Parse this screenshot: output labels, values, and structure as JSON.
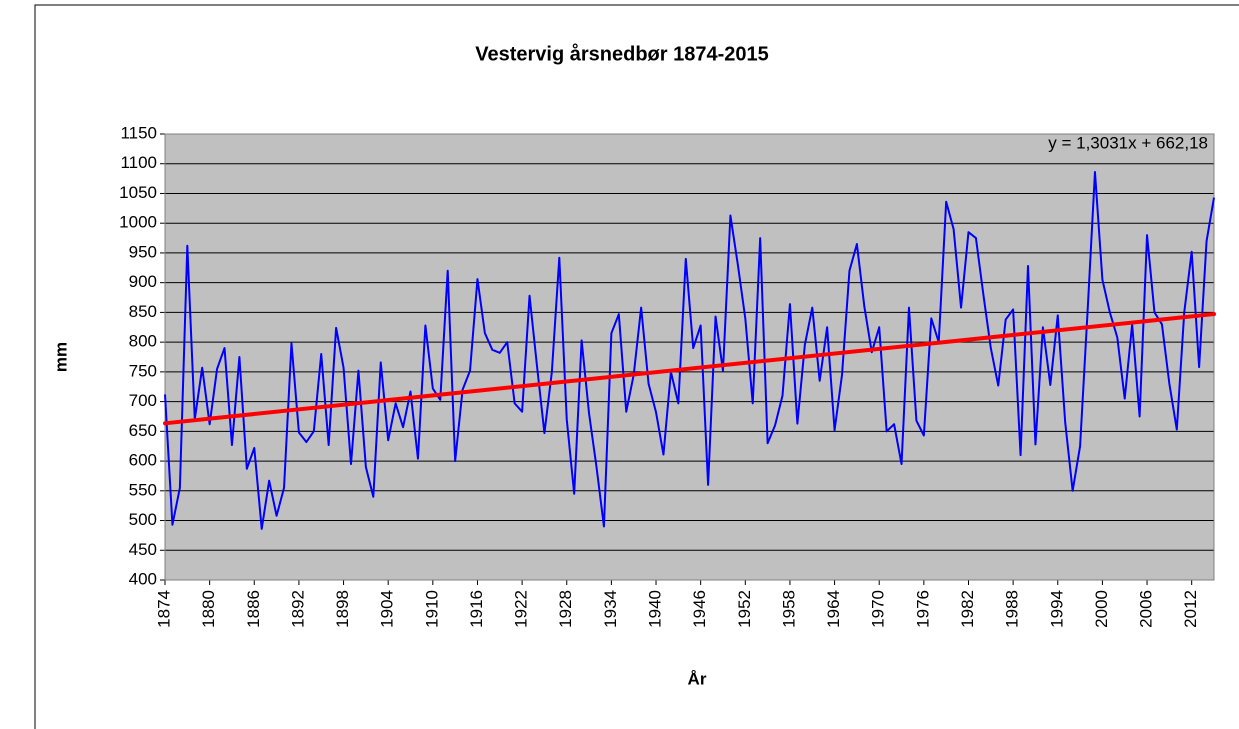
{
  "chart_data": {
    "type": "line",
    "title": "Vestervig årsnedbør 1874-2015",
    "x_label": "År",
    "y_label": "mm",
    "x": [
      1874,
      1875,
      1876,
      1877,
      1878,
      1879,
      1880,
      1881,
      1882,
      1883,
      1884,
      1885,
      1886,
      1887,
      1888,
      1889,
      1890,
      1891,
      1892,
      1893,
      1894,
      1895,
      1896,
      1897,
      1898,
      1899,
      1900,
      1901,
      1902,
      1903,
      1904,
      1905,
      1906,
      1907,
      1908,
      1909,
      1910,
      1911,
      1912,
      1913,
      1914,
      1915,
      1916,
      1917,
      1918,
      1919,
      1920,
      1921,
      1922,
      1923,
      1924,
      1925,
      1926,
      1927,
      1928,
      1929,
      1930,
      1931,
      1932,
      1933,
      1934,
      1935,
      1936,
      1937,
      1938,
      1939,
      1940,
      1941,
      1942,
      1943,
      1944,
      1945,
      1946,
      1947,
      1948,
      1949,
      1950,
      1951,
      1952,
      1953,
      1954,
      1955,
      1956,
      1957,
      1958,
      1959,
      1960,
      1961,
      1962,
      1963,
      1964,
      1965,
      1966,
      1967,
      1968,
      1969,
      1970,
      1971,
      1972,
      1973,
      1974,
      1975,
      1976,
      1977,
      1978,
      1979,
      1980,
      1981,
      1982,
      1983,
      1984,
      1985,
      1986,
      1987,
      1988,
      1989,
      1990,
      1991,
      1992,
      1993,
      1994,
      1995,
      1996,
      1997,
      1998,
      1999,
      2000,
      2001,
      2002,
      2003,
      2004,
      2005,
      2006,
      2007,
      2008,
      2009,
      2010,
      2011,
      2012,
      2013,
      2014,
      2015
    ],
    "series": [
      {
        "color": "#0000ff",
        "values": [
          712,
          493,
          555,
          962,
          670,
          757,
          662,
          755,
          790,
          627,
          775,
          587,
          622,
          486,
          567,
          508,
          555,
          798,
          648,
          632,
          650,
          780,
          627,
          824,
          757,
          595,
          752,
          590,
          540,
          766,
          635,
          697,
          657,
          717,
          604,
          828,
          722,
          703,
          920,
          600,
          720,
          752,
          906,
          815,
          787,
          782,
          800,
          697,
          683,
          878,
          760,
          647,
          750,
          942,
          670,
          545,
          803,
          680,
          590,
          490,
          815,
          847,
          683,
          745,
          858,
          730,
          682,
          611,
          750,
          697,
          940,
          790,
          828,
          560,
          843,
          752,
          1013,
          930,
          840,
          697,
          975,
          630,
          660,
          710,
          864,
          663,
          795,
          858,
          735,
          825,
          652,
          745,
          920,
          965,
          860,
          783,
          825,
          650,
          662,
          595,
          858,
          668,
          643,
          840,
          800,
          1036,
          990,
          858,
          985,
          975,
          880,
          790,
          727,
          838,
          855,
          610,
          928,
          628,
          825,
          728,
          845,
          665,
          550,
          625,
          850,
          1086,
          905,
          850,
          808,
          705,
          830,
          675,
          980,
          850,
          830,
          730,
          653,
          850,
          952,
          758,
          970,
          1043
        ]
      }
    ],
    "trendline": {
      "label": "y = 1,3031x + 662,18",
      "slope": 1.3031,
      "intercept": 662.18,
      "color": "#ff0000"
    },
    "xlim": [
      1874,
      2015
    ],
    "xticks": [
      1874,
      1880,
      1886,
      1892,
      1898,
      1904,
      1910,
      1916,
      1922,
      1928,
      1934,
      1940,
      1946,
      1952,
      1958,
      1964,
      1970,
      1976,
      1982,
      1988,
      1994,
      2000,
      2006,
      2012
    ],
    "ylim": [
      400,
      1150
    ],
    "yticks": [
      400,
      450,
      500,
      550,
      600,
      650,
      700,
      750,
      800,
      850,
      900,
      950,
      1000,
      1050,
      1100,
      1150
    ],
    "grid": true,
    "plot_background": "#c0c0c0"
  }
}
